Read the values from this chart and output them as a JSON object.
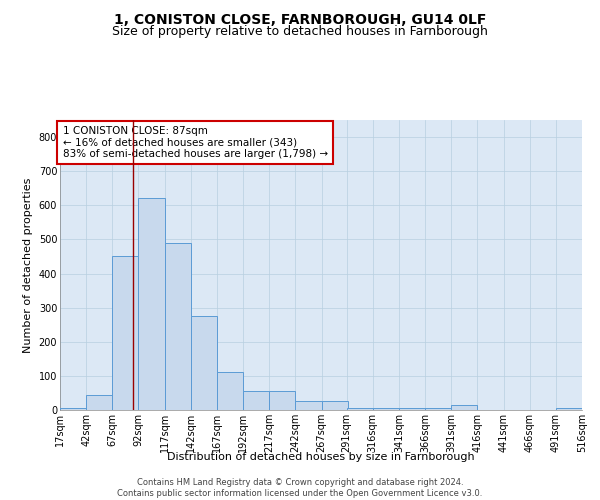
{
  "title": "1, CONISTON CLOSE, FARNBOROUGH, GU14 0LF",
  "subtitle": "Size of property relative to detached houses in Farnborough",
  "xlabel": "Distribution of detached houses by size in Farnborough",
  "ylabel": "Number of detached properties",
  "footnote1": "Contains HM Land Registry data © Crown copyright and database right 2024.",
  "footnote2": "Contains public sector information licensed under the Open Government Licence v3.0.",
  "annotation_line1": "1 CONISTON CLOSE: 87sqm",
  "annotation_line2": "← 16% of detached houses are smaller (343)",
  "annotation_line3": "83% of semi-detached houses are larger (1,798) →",
  "bar_values": [
    5,
    45,
    450,
    620,
    490,
    275,
    110,
    55,
    55,
    25,
    25,
    5,
    5,
    5,
    5,
    15,
    0,
    0,
    0,
    5
  ],
  "bin_edges": [
    17,
    42,
    67,
    92,
    117,
    142,
    167,
    192,
    217,
    242,
    267,
    291,
    316,
    341,
    366,
    391,
    416,
    441,
    466,
    491,
    516
  ],
  "tick_labels": [
    "17sqm",
    "42sqm",
    "67sqm",
    "92sqm",
    "117sqm",
    "142sqm",
    "167sqm",
    "192sqm",
    "217sqm",
    "242sqm",
    "267sqm",
    "291sqm",
    "316sqm",
    "341sqm",
    "366sqm",
    "391sqm",
    "416sqm",
    "441sqm",
    "466sqm",
    "491sqm",
    "516sqm"
  ],
  "bar_color": "#c8d9ed",
  "bar_edge_color": "#5b9bd5",
  "grid_color": "#b8cfe0",
  "plot_bg_color": "#dce8f5",
  "red_line_x": 87,
  "annotation_box_color": "#cc0000",
  "ylim": [
    0,
    850
  ],
  "yticks": [
    0,
    100,
    200,
    300,
    400,
    500,
    600,
    700,
    800
  ],
  "title_fontsize": 10,
  "subtitle_fontsize": 9,
  "annotation_fontsize": 7.5,
  "axis_label_fontsize": 8,
  "tick_fontsize": 7
}
